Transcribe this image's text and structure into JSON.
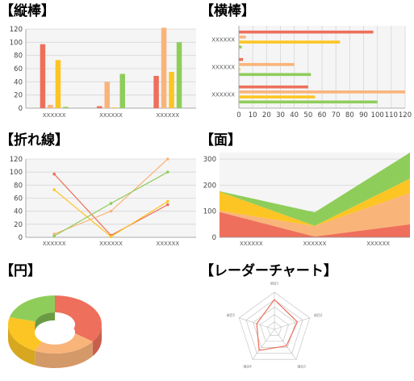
{
  "headings": {
    "vbar": "【縦棒】",
    "hbar": "【横棒】",
    "line": "【折れ線】",
    "area": "【面】",
    "pie": "【円】",
    "radar": "【レーダーチャート】"
  },
  "palette": [
    "#ee6f5b",
    "#f9b47a",
    "#fcc524",
    "#8fcd5b"
  ],
  "chart_data": [
    {
      "id": "vbar",
      "type": "bar",
      "orientation": "vertical",
      "title": "【縦棒】",
      "categories": [
        "XXXXXX",
        "XXXXXX",
        "XXXXXX"
      ],
      "series": [
        {
          "values": [
            97,
            3,
            49
          ]
        },
        {
          "values": [
            5,
            40,
            122
          ]
        },
        {
          "values": [
            73,
            1,
            55
          ]
        },
        {
          "values": [
            2,
            52,
            100
          ]
        }
      ],
      "ylim": [
        0,
        120
      ],
      "yticks": [
        0,
        20,
        40,
        60,
        80,
        100,
        120
      ],
      "grid": true
    },
    {
      "id": "hbar",
      "type": "bar",
      "orientation": "horizontal",
      "title": "【横棒】",
      "categories": [
        "XXXXXX",
        "XXXXXX",
        "XXXXXX"
      ],
      "series": [
        {
          "values": [
            97,
            3,
            50
          ]
        },
        {
          "values": [
            5,
            40,
            120
          ]
        },
        {
          "values": [
            73,
            1,
            55
          ]
        },
        {
          "values": [
            2,
            52,
            100
          ]
        }
      ],
      "xlim": [
        0,
        120
      ],
      "xticks": [
        0,
        10,
        20,
        30,
        40,
        50,
        60,
        70,
        80,
        90,
        100,
        110,
        120
      ],
      "grid": true
    },
    {
      "id": "line",
      "type": "line",
      "title": "【折れ線】",
      "categories": [
        "XXXXXX",
        "XXXXXX",
        "XXXXXX"
      ],
      "series": [
        {
          "values": [
            97,
            3,
            50
          ]
        },
        {
          "values": [
            5,
            40,
            120
          ]
        },
        {
          "values": [
            73,
            1,
            55
          ]
        },
        {
          "values": [
            2,
            52,
            100
          ]
        }
      ],
      "ylim": [
        0,
        120
      ],
      "yticks": [
        0,
        20,
        40,
        60,
        80,
        100,
        120
      ],
      "grid": true
    },
    {
      "id": "area",
      "type": "area",
      "stacked": true,
      "title": "【面】",
      "categories": [
        "XXXXXX",
        "XXXXXX",
        "XXXXXX"
      ],
      "series": [
        {
          "values": [
            97,
            3,
            50
          ]
        },
        {
          "values": [
            5,
            40,
            120
          ]
        },
        {
          "values": [
            73,
            1,
            55
          ]
        },
        {
          "values": [
            2,
            52,
            100
          ]
        }
      ],
      "ylim": [
        0,
        325
      ],
      "yticks": [
        0,
        100,
        200,
        300
      ],
      "grid": true
    },
    {
      "id": "pie",
      "type": "pie",
      "style": "3d-donut",
      "title": "【円】",
      "values": [
        35,
        22,
        22,
        21
      ]
    },
    {
      "id": "radar",
      "type": "radar",
      "title": "【レーダーチャート】",
      "axes": [
        "項目1",
        "項目2",
        "項目3",
        "項目4",
        "項目5"
      ],
      "values": [
        80,
        65,
        55,
        70,
        50
      ],
      "max": 100,
      "rings": 5
    }
  ]
}
